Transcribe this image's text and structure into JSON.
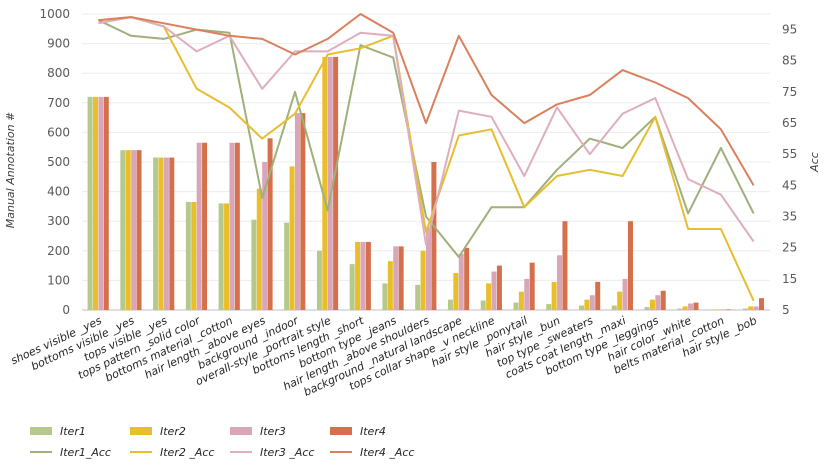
{
  "chart_data": {
    "type": "bar",
    "title": "",
    "xlabel": "",
    "ylabel": "Manual Annotation #",
    "y2label": "Acc",
    "ylim": [
      0,
      1000
    ],
    "y2lim": [
      5,
      100
    ],
    "yticks": [
      "0",
      "100",
      "200",
      "300",
      "400",
      "500",
      "600",
      "700",
      "800",
      "900",
      "1000"
    ],
    "y2ticks": [
      "5",
      "15",
      "25",
      "35",
      "45",
      "55",
      "65",
      "75",
      "85",
      "95"
    ],
    "categories": [
      "shoes visible _yes",
      "bottoms visible _yes",
      "tops visible _yes",
      "tops pattern _solid color",
      "bottoms material _cotton",
      "hair length _above eyes",
      "background _indoor",
      "overall-style _portrait style",
      "bottoms length _short",
      "bottom type _jeans",
      "hair length _above shoulders",
      "background _natural landscape",
      "tops collar shape _v neckline",
      "hair style _ponytail",
      "hair style _bun",
      "top type _sweaters",
      "coats coat length _maxi",
      "bottom type _leggings",
      "hair color _white",
      "belts material _cotton",
      "hair style _bob"
    ],
    "series": [
      {
        "name": "Iter1",
        "color": "#b5c98d",
        "values": [
          720,
          540,
          515,
          365,
          360,
          305,
          295,
          200,
          155,
          90,
          85,
          35,
          32,
          25,
          20,
          15,
          15,
          10,
          5,
          2,
          5
        ]
      },
      {
        "name": "Iter2",
        "color": "#e8bf2a",
        "values": [
          720,
          540,
          515,
          365,
          360,
          410,
          485,
          855,
          230,
          165,
          200,
          125,
          90,
          62,
          95,
          35,
          62,
          35,
          12,
          2,
          12
        ]
      },
      {
        "name": "Iter3",
        "color": "#d8a6b8",
        "values": [
          720,
          540,
          515,
          565,
          565,
          500,
          665,
          855,
          230,
          215,
          280,
          190,
          130,
          105,
          185,
          50,
          105,
          50,
          22,
          2,
          12
        ]
      },
      {
        "name": "Iter4",
        "color": "#d4704b",
        "values": [
          720,
          540,
          515,
          565,
          565,
          580,
          665,
          855,
          230,
          215,
          500,
          210,
          150,
          160,
          300,
          95,
          300,
          65,
          25,
          2,
          40
        ]
      }
    ],
    "line_series": [
      {
        "name": "Iter1_Acc",
        "color": "#9fb07a",
        "values": [
          98,
          93,
          92,
          95,
          94,
          41,
          75,
          37,
          90,
          86,
          35,
          22,
          38,
          38,
          50,
          60,
          57,
          67,
          36,
          57,
          36
        ]
      },
      {
        "name": "Iter2 _Acc",
        "color": "#e6be2e",
        "values": [
          98,
          99,
          96,
          76,
          70,
          60,
          68,
          87,
          89,
          93,
          30,
          61,
          63,
          38,
          48,
          50,
          48,
          67,
          31,
          31,
          8
        ]
      },
      {
        "name": "Iter3 _Acc",
        "color": "#dfaebd",
        "values": [
          97,
          99,
          96,
          88,
          93,
          76,
          88,
          88,
          94,
          93,
          26,
          69,
          67,
          48,
          70,
          55,
          68,
          73,
          47,
          42,
          27
        ]
      },
      {
        "name": "Iter4 _Acc",
        "color": "#d9805c",
        "values": [
          98,
          99,
          97,
          95,
          93,
          92,
          87,
          92,
          100,
          94,
          65,
          93,
          74,
          65,
          71,
          74,
          82,
          78,
          73,
          63,
          45
        ]
      }
    ],
    "legend": [
      "Iter1",
      "Iter2",
      "Iter3",
      "Iter4",
      "Iter1_Acc",
      "Iter2 _Acc",
      "Iter3 _Acc",
      "Iter4 _Acc"
    ],
    "legend_position": "bottom-left"
  }
}
